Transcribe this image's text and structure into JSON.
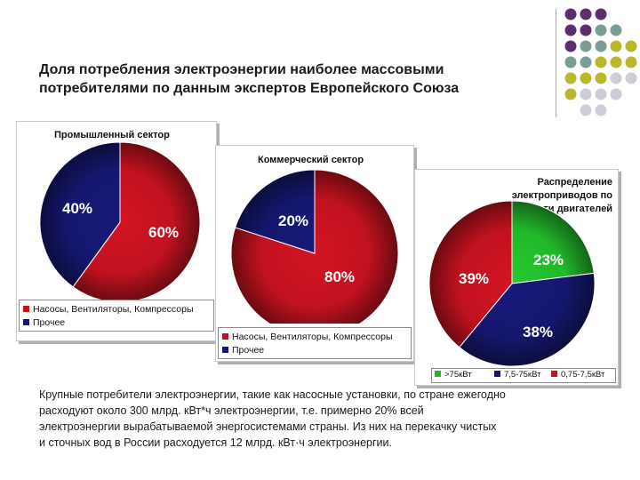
{
  "title": {
    "line1": "Доля потребления электроэнергии наиболее массовыми",
    "line2": "потребителями по данным экспертов Европейского Союза"
  },
  "colors": {
    "red": "#c1121f",
    "navy": "#15176e",
    "green": "#22b82b",
    "dot_purple": "#5d2e6e",
    "dot_teal": "#7a9e96",
    "dot_olive": "#b8b82a",
    "dot_grey": "#cdcdd8"
  },
  "chart_data": [
    {
      "type": "pie",
      "title": "Промышленный сектор",
      "slices": [
        {
          "label": "Насосы, Вентиляторы, Компрессоры",
          "value": 60,
          "text": "60%",
          "color": "#c1121f"
        },
        {
          "label": "Прочее",
          "value": 40,
          "text": "40%",
          "color": "#15176e"
        }
      ],
      "legend": [
        "Насосы, Вентиляторы, Компрессоры",
        "Прочее"
      ]
    },
    {
      "type": "pie",
      "title": "Коммерческий сектор",
      "slices": [
        {
          "label": "Насосы, Вентиляторы, Компрессоры",
          "value": 80,
          "text": "80%",
          "color": "#c1121f"
        },
        {
          "label": "Прочее",
          "value": 20,
          "text": "20%",
          "color": "#15176e"
        }
      ],
      "legend": [
        "Насосы, Вентиляторы, Компрессоры",
        "Прочее"
      ]
    },
    {
      "type": "pie",
      "title": "Распределение электроприводов по мощности двигателей",
      "title_lines": [
        "Распределение",
        "электроприводов по",
        "мощности двигателей"
      ],
      "slices": [
        {
          "label": ">75кВт",
          "value": 23,
          "text": "23%",
          "color": "#22b82b"
        },
        {
          "label": "7,5-75кВт",
          "value": 38,
          "text": "38%",
          "color": "#15176e"
        },
        {
          "label": "0,75-7,5кВт",
          "value": 39,
          "text": "39%",
          "color": "#c1121f"
        }
      ],
      "legend": [
        ">75кВт",
        "7,5-75кВт",
        "0,75-7,5кВт"
      ]
    }
  ],
  "body": {
    "lines": [
      "Крупные потребители электроэнергии, такие как насосные установки, по стране ежегодно",
      "расходуют около 300 млрд. кВт*ч электроэнергии, т.е. примерно 20% всей",
      "электроэнергии вырабатываемой энергосистемами страны.  Из них на перекачку чистых",
      "и сточных вод в России расходуется 12 млрд. кВт·ч электроэнергии."
    ]
  }
}
